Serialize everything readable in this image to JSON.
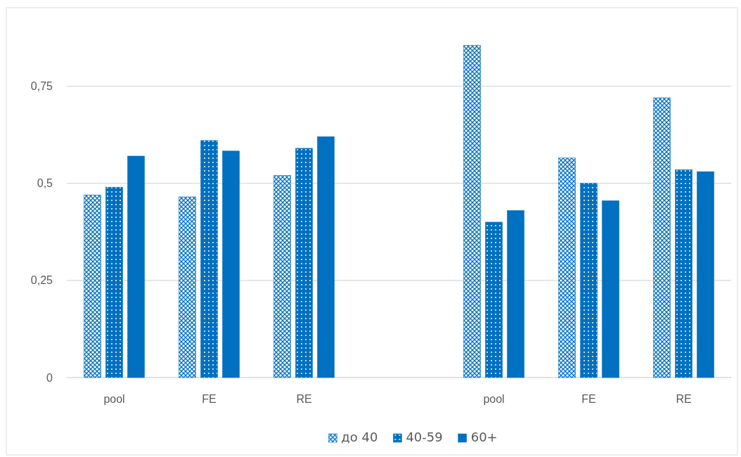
{
  "chart_data": {
    "type": "bar",
    "categories": [
      "pool",
      "FE",
      "RE",
      null,
      "pool",
      "FE",
      "RE"
    ],
    "series": [
      {
        "name": "до 40",
        "color": "#0070c0",
        "values": [
          0.47,
          0.465,
          0.52,
          null,
          0.855,
          0.565,
          0.72
        ]
      },
      {
        "name": "40-59",
        "color": "#0070c0",
        "values": [
          0.49,
          0.61,
          0.59,
          null,
          0.4,
          0.5,
          0.535
        ]
      },
      {
        "name": "60+",
        "color": "#0070c0",
        "values": [
          0.57,
          0.583,
          0.62,
          null,
          0.43,
          0.455,
          0.53
        ]
      }
    ],
    "ylim": [
      0,
      0.95
    ],
    "yticks": [
      {
        "value": 0,
        "label": "0"
      },
      {
        "value": 0.25,
        "label": "0,25"
      },
      {
        "value": 0.5,
        "label": "0,5"
      },
      {
        "value": 0.75,
        "label": "0,75"
      }
    ],
    "grid": "y",
    "legend": "bottom"
  }
}
